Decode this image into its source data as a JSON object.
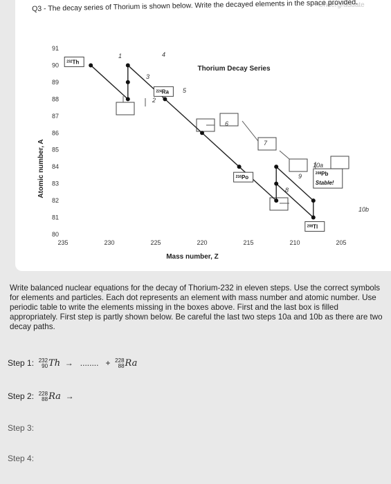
{
  "header": {
    "watermark": "Undergraduate",
    "question": "Q3 - The decay series of Thorium is shown below. Write the decayed elements in the space provided."
  },
  "chart_data": {
    "type": "line",
    "title": "Thorium Decay Series",
    "xlabel": "Mass number, Z",
    "ylabel": "Atomic number, A",
    "x_ticks": [
      235,
      230,
      225,
      220,
      215,
      210,
      205
    ],
    "y_ticks": [
      91,
      90,
      89,
      88,
      87,
      86,
      85,
      84,
      83,
      82,
      81,
      80
    ],
    "xlim": [
      235,
      205
    ],
    "ylim": [
      80,
      91
    ],
    "labeled_nuclides": [
      {
        "label": "232Th",
        "mass": "232",
        "symbol": "Th",
        "x": 232,
        "y": 90
      },
      {
        "label": "224Ra",
        "mass": "224",
        "symbol": "Ra",
        "x": 224,
        "y": 88
      },
      {
        "label": "216Po",
        "mass": "216",
        "symbol": "Po",
        "x": 216,
        "y": 84
      },
      {
        "label": "208Pb Stable!",
        "mass": "208",
        "symbol": "Pb",
        "note": "Stable!",
        "x": 208,
        "y": 82
      },
      {
        "label": "208Tl",
        "mass": "208",
        "symbol": "Tl",
        "x": 208,
        "y": 81
      }
    ],
    "path": [
      {
        "x": 232,
        "y": 90
      },
      {
        "x": 228,
        "y": 88
      },
      {
        "x": 228,
        "y": 89
      },
      {
        "x": 228,
        "y": 90
      },
      {
        "x": 224,
        "y": 88
      },
      {
        "x": 220,
        "y": 86
      },
      {
        "x": 216,
        "y": 84
      },
      {
        "x": 212,
        "y": 82
      },
      {
        "x": 212,
        "y": 83
      },
      {
        "x": 208,
        "y": 81
      },
      {
        "x": 208,
        "y": 82
      }
    ],
    "branch": [
      {
        "x": 212,
        "y": 83
      },
      {
        "x": 212,
        "y": 84
      },
      {
        "x": 208,
        "y": 82
      }
    ],
    "handwritten_step_numbers": [
      "1",
      "2",
      "3",
      "4",
      "5",
      "6",
      "7",
      "8",
      "9",
      "10a",
      "10b"
    ]
  },
  "instructions": "Write balanced nuclear equations for the decay of Thorium-232 in eleven steps. Use the correct symbols for elements and particles. Each dot represents an element with mass number and atomic number. Use periodic table to write the elements missing in the boxes above. First and the last box is filled appropriately. First step is partly shown below. Be careful the last two steps 10a and 10b as there are two decay paths.",
  "steps": [
    {
      "label": "Step 1:",
      "parent_mass": "232",
      "parent_z": "90",
      "parent_symbol": "Th",
      "arrow": "→",
      "dots": "........",
      "plus": "+",
      "product_mass": "228",
      "product_z": "88",
      "product_symbol": "Ra"
    },
    {
      "label": "Step 2:",
      "parent_mass": "228",
      "parent_z": "88",
      "parent_symbol": "Ra",
      "arrow": "→"
    },
    {
      "label": "Step 3:"
    },
    {
      "label": "Step 4:"
    }
  ]
}
